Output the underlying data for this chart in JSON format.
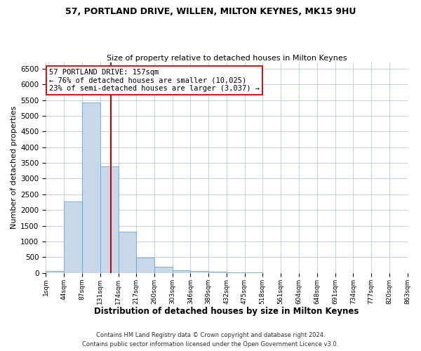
{
  "title": "57, PORTLAND DRIVE, WILLEN, MILTON KEYNES, MK15 9HU",
  "subtitle": "Size of property relative to detached houses in Milton Keynes",
  "xlabel": "Distribution of detached houses by size in Milton Keynes",
  "ylabel": "Number of detached properties",
  "bar_color": "#c8d8e8",
  "bar_edge_color": "#6ea8d0",
  "bin_edges": [
    1,
    44,
    87,
    131,
    174,
    217,
    260,
    303,
    346,
    389,
    432,
    475,
    518,
    561,
    604,
    648,
    691,
    734,
    777,
    820,
    863
  ],
  "bin_labels": [
    "1sqm",
    "44sqm",
    "87sqm",
    "131sqm",
    "174sqm",
    "217sqm",
    "260sqm",
    "303sqm",
    "346sqm",
    "389sqm",
    "432sqm",
    "475sqm",
    "518sqm",
    "561sqm",
    "604sqm",
    "648sqm",
    "691sqm",
    "734sqm",
    "777sqm",
    "820sqm",
    "863sqm"
  ],
  "bar_heights": [
    70,
    2270,
    5430,
    3380,
    1310,
    490,
    195,
    95,
    55,
    30,
    15,
    10,
    0,
    0,
    0,
    0,
    0,
    0,
    0,
    0
  ],
  "ylim": [
    0,
    6700
  ],
  "yticks": [
    0,
    500,
    1000,
    1500,
    2000,
    2500,
    3000,
    3500,
    4000,
    4500,
    5000,
    5500,
    6000,
    6500
  ],
  "property_size": 157,
  "vline_color": "#cc0000",
  "annotation_text_line1": "57 PORTLAND DRIVE: 157sqm",
  "annotation_text_line2": "← 76% of detached houses are smaller (10,025)",
  "annotation_text_line3": "23% of semi-detached houses are larger (3,037) →",
  "annotation_box_color": "#ffffff",
  "annotation_box_edge": "#cc0000",
  "footer_line1": "Contains HM Land Registry data © Crown copyright and database right 2024.",
  "footer_line2": "Contains public sector information licensed under the Open Government Licence v3.0.",
  "background_color": "#ffffff",
  "grid_color": "#c0c8d8",
  "title_fontsize": 9.0,
  "subtitle_fontsize": 8.0,
  "xlabel_fontsize": 8.5,
  "ylabel_fontsize": 8.0,
  "footer_fontsize": 6.0
}
